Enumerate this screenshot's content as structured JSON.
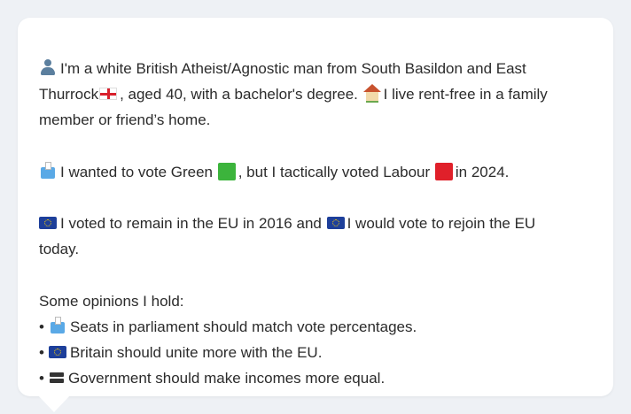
{
  "post": {
    "paragraph1": {
      "line1_text": "I'm a white British Atheist/Agnostic man from South Basildon and East",
      "line2_prefix": "Thurrock",
      "line2_middle": ", aged 40, with a bachelor's degree.",
      "line2_suffix": "I live rent-free in a family",
      "line3_text": "member or friend’s home."
    },
    "paragraph2": {
      "prefix": "I wanted to vote Green",
      "middle": ", but I tactically voted Labour",
      "suffix": "in 2024."
    },
    "paragraph3": {
      "prefix": "I voted to remain in the EU in 2016 and",
      "suffix": "I would vote to rejoin the EU",
      "line2_text": "today."
    },
    "opinions": {
      "heading": "Some opinions I hold:",
      "bullet_char": "•",
      "items": [
        {
          "icon": "ballot-box-icon",
          "text": "Seats in parliament should match vote percentages."
        },
        {
          "icon": "eu-flag-icon",
          "text": "Britain should unite more with the EU."
        },
        {
          "icon": "equals-icon",
          "text": "Government should make incomes more equal."
        }
      ]
    },
    "colors": {
      "green_party": "#3cb43c",
      "labour_party": "#e0202a",
      "eu_blue": "#1d3f9a",
      "bubble_bg": "#ffffff",
      "page_bg": "#eef1f5"
    }
  }
}
